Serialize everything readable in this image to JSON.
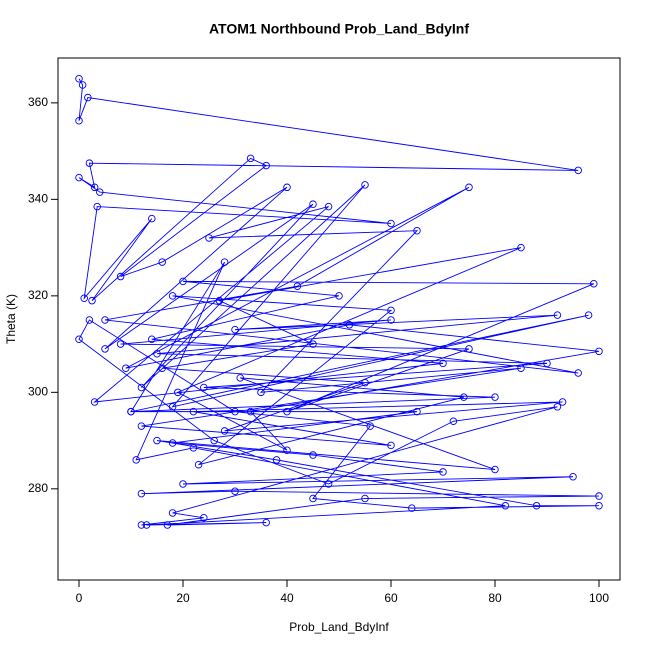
{
  "chart_data": {
    "type": "line",
    "title": "ATOM1 Northbound Prob_Land_BdyInf",
    "x_label": "Prob_Land_BdyInf",
    "y_label": "Theta (K)",
    "markers": "open-circle",
    "x": [
      0,
      0.7,
      0,
      1.7,
      96,
      2,
      3,
      0,
      4,
      60,
      3.5,
      1,
      14,
      2.5,
      33,
      36,
      8,
      16,
      40,
      5,
      45,
      12,
      55,
      18,
      98,
      10,
      28,
      11,
      22,
      82,
      13,
      36,
      17,
      55,
      100,
      30,
      12,
      95,
      20,
      70,
      45,
      18,
      65,
      10,
      80,
      24,
      90,
      15,
      92,
      30,
      60,
      8,
      75,
      40,
      99,
      20,
      50,
      14,
      70,
      3,
      48,
      25,
      65,
      35,
      85,
      12,
      60,
      22,
      93,
      28,
      55,
      16,
      45,
      27,
      85,
      19,
      40,
      33,
      100,
      52,
      9,
      75,
      42,
      5,
      96,
      18,
      60,
      23,
      74,
      31,
      80,
      15,
      38,
      88,
      100,
      64,
      45,
      56,
      30,
      2,
      0,
      26,
      48,
      72,
      92,
      18,
      24,
      12
    ],
    "series": [
      {
        "name": "Theta",
        "color": "#0000ff",
        "values": [
          365,
          363.7,
          356.3,
          361.1,
          346,
          347.5,
          342.5,
          344.5,
          341.5,
          335,
          338.5,
          319.5,
          336,
          319,
          348.5,
          347,
          324,
          327,
          342.5,
          309,
          339,
          301,
          343,
          297,
          316,
          296,
          327,
          286,
          288.5,
          276.5,
          272.5,
          273,
          272.5,
          278,
          278.5,
          279.5,
          279,
          282.5,
          281,
          283.5,
          287,
          289.5,
          296,
          296,
          299,
          301,
          306,
          308,
          316,
          313,
          315,
          310,
          309,
          296,
          322.5,
          323,
          320,
          311,
          306,
          298,
          338.5,
          332,
          333.5,
          300,
          305,
          293,
          289,
          296,
          298,
          292,
          302,
          305,
          310,
          319,
          330,
          300,
          288,
          296,
          308.5,
          314,
          305,
          342.5,
          322,
          315,
          304,
          320,
          317,
          285,
          299,
          303,
          284,
          290,
          286,
          276.5,
          276.5,
          276,
          278,
          293,
          296,
          315,
          311,
          290,
          281,
          294,
          297,
          275,
          274,
          272.5
        ]
      }
    ],
    "xlim": [
      -4.04,
      104.04
    ],
    "xticks": [
      0,
      20,
      40,
      60,
      80,
      100
    ],
    "ylim": [
      261.1,
      369.3
    ],
    "yticks": [
      280,
      300,
      320,
      340,
      360
    ]
  }
}
